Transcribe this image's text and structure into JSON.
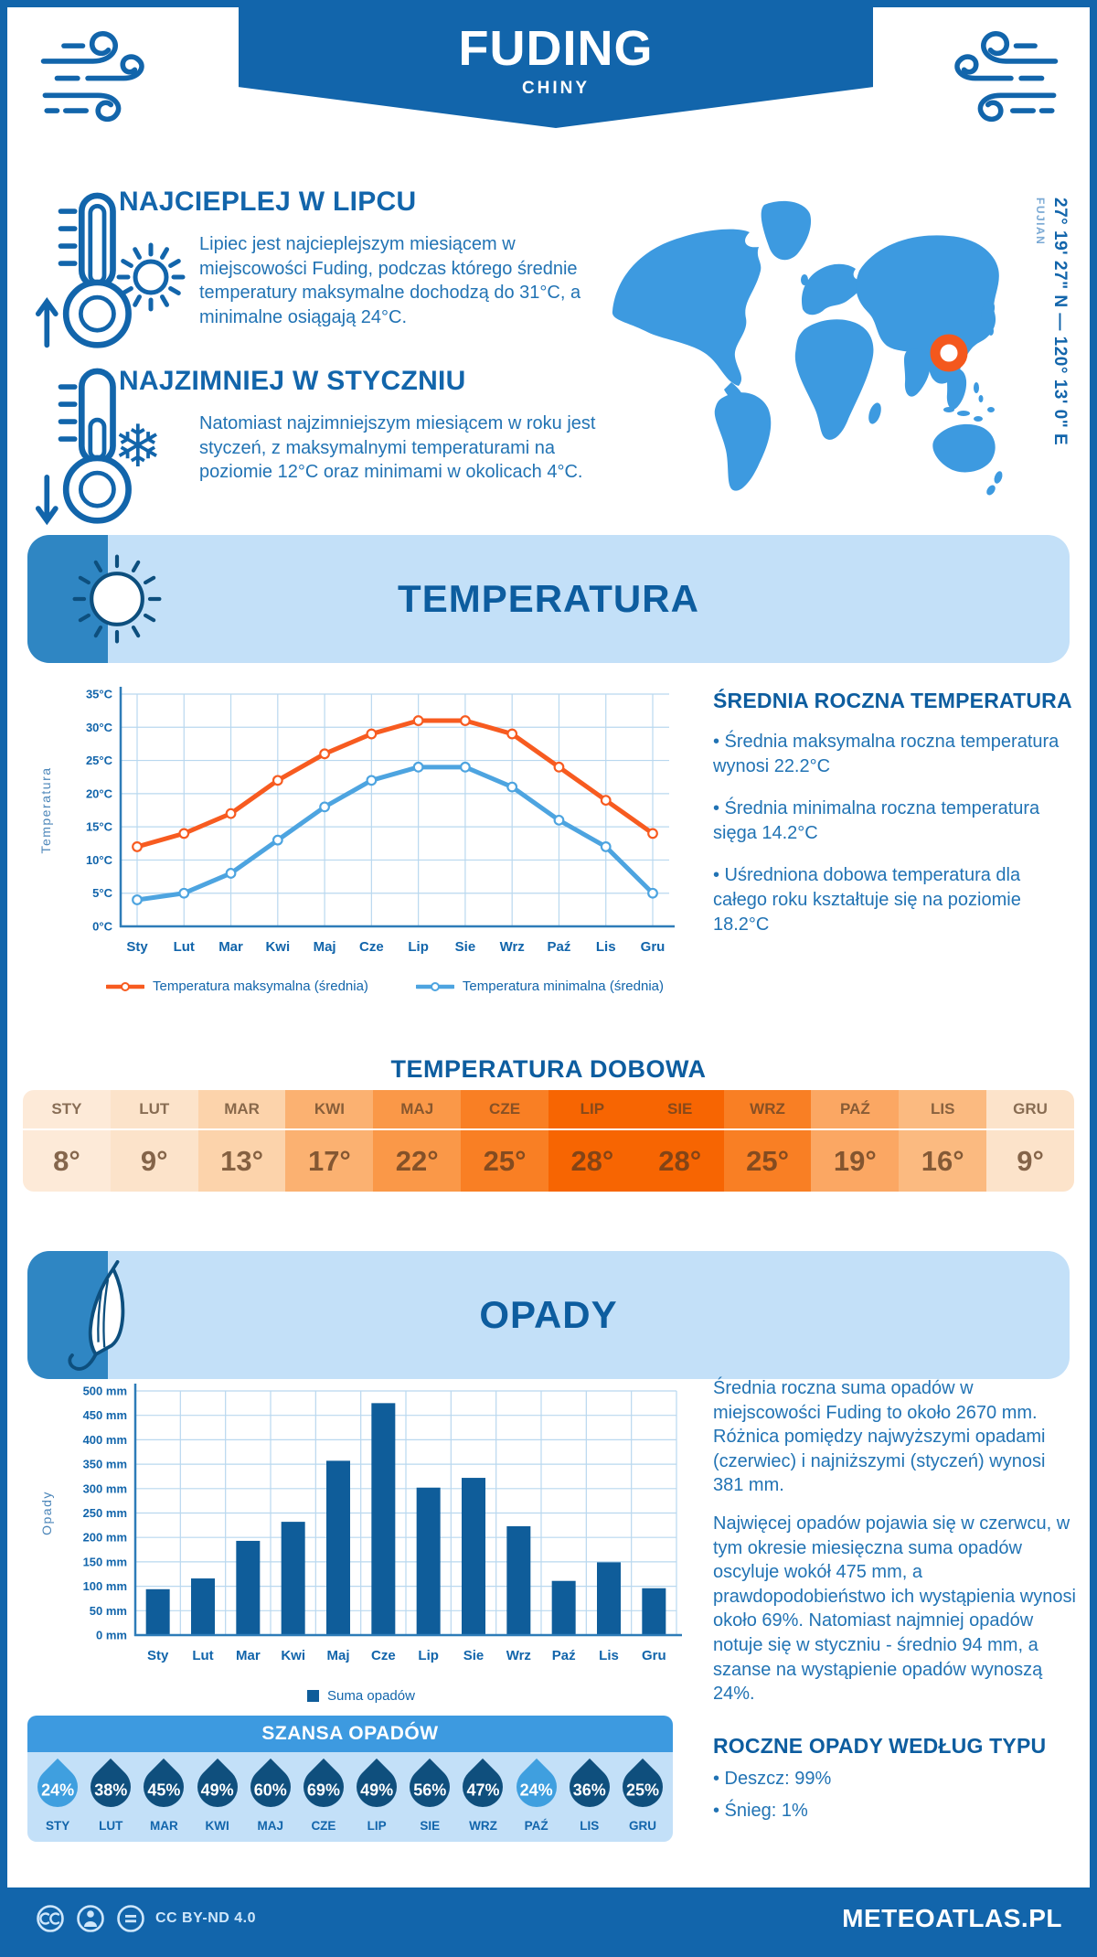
{
  "page": {
    "header": {
      "title": "FUDING",
      "subtitle": "CHINY"
    },
    "highlights": {
      "warmest": {
        "heading": "NAJCIEPLEJ W LIPCU",
        "text": "Lipiec jest najcieplejszym miesiącem w miejscowości Fuding, podczas którego średnie temperatury maksymalne dochodzą do 31°C, a minimalne osiągają 24°C."
      },
      "coldest": {
        "heading": "NAJZIMNIEJ W STYCZNIU",
        "text": "Natomiast najzimniejszym miesiącem w roku jest styczeń, z maksymalnymi temperaturami na poziomie 12°C oraz minimami w okolicach 4°C."
      }
    },
    "map": {
      "coordinates": "27° 19' 27\" N — 120° 13' 0\" E",
      "region": "FUJIAN"
    },
    "temperature_section": {
      "banner": "TEMPERATURA",
      "annual": {
        "heading": "ŚREDNIA ROCZNA TEMPERATURA",
        "bullets": [
          "• Średnia maksymalna roczna temperatura wynosi 22.2°C",
          "• Średnia minimalna roczna temperatura sięga 14.2°C",
          "• Uśredniona dobowa temperatura dla całego roku kształtuje się na poziomie 18.2°C"
        ]
      },
      "daily": {
        "heading": "TEMPERATURA DOBOWA",
        "months": [
          "STY",
          "LUT",
          "MAR",
          "KWI",
          "MAJ",
          "CZE",
          "LIP",
          "SIE",
          "WRZ",
          "PAŹ",
          "LIS",
          "GRU"
        ],
        "values": [
          "8°",
          "9°",
          "13°",
          "17°",
          "22°",
          "25°",
          "28°",
          "28°",
          "25°",
          "19°",
          "16°",
          "9°"
        ],
        "cell_colors": [
          "#fdead8",
          "#fce3ca",
          "#fcd3ab",
          "#fbb171",
          "#fa9848",
          "#f97f24",
          "#f76502",
          "#f76502",
          "#f97f24",
          "#fba763",
          "#fbba80",
          "#fce3ca"
        ]
      }
    },
    "precipitation_section": {
      "banner": "OPADY",
      "summary_paragraphs": [
        "Średnia roczna suma opadów w miejscowości Fuding to około 2670 mm. Różnica pomiędzy najwyższymi opadami (czerwiec) i najniższymi (styczeń) wynosi 381 mm.",
        "Najwięcej opadów pojawia się w czerwcu, w tym okresie miesięczna suma opadów oscyluje wokół 475 mm, a prawdopodobieństwo ich wystąpienia wynosi około 69%. Natomiast najmniej opadów notuje się w styczniu - średnio 94 mm, a szanse na wystąpienie opadów wynoszą 24%."
      ],
      "by_type": {
        "heading": "ROCZNE OPADY WEDŁUG TYPU",
        "bullets": [
          "• Deszcz: 99%",
          "• Śnieg: 1%"
        ]
      },
      "chance": {
        "heading": "SZANSA OPADÓW",
        "months": [
          "STY",
          "LUT",
          "MAR",
          "KWI",
          "MAJ",
          "CZE",
          "LIP",
          "SIE",
          "WRZ",
          "PAŹ",
          "LIS",
          "GRU"
        ],
        "values": [
          "24%",
          "38%",
          "45%",
          "49%",
          "60%",
          "69%",
          "49%",
          "56%",
          "47%",
          "24%",
          "36%",
          "25%"
        ],
        "tones": [
          "light",
          "dark",
          "dark",
          "dark",
          "dark",
          "dark",
          "dark",
          "dark",
          "dark",
          "light",
          "dark",
          "dark"
        ]
      }
    },
    "footer": {
      "license": "CC BY-ND 4.0",
      "brand": "METEOATLAS.PL"
    }
  },
  "chart_data": [
    {
      "type": "line",
      "x": [
        "Sty",
        "Lut",
        "Mar",
        "Kwi",
        "Maj",
        "Cze",
        "Lip",
        "Sie",
        "Wrz",
        "Paź",
        "Lis",
        "Gru"
      ],
      "series": [
        {
          "name": "Temperatura maksymalna (średnia)",
          "color": "#f75b20",
          "values": [
            12,
            14,
            17,
            22,
            26,
            29,
            31,
            31,
            29,
            24,
            19,
            14
          ]
        },
        {
          "name": "Temperatura minimalna (średnia)",
          "color": "#4da4e0",
          "values": [
            4,
            5,
            8,
            13,
            18,
            22,
            24,
            24,
            21,
            16,
            12,
            5
          ]
        }
      ],
      "ylabel": "Temperatura",
      "ylim": [
        0,
        35
      ],
      "ytick_step": 5,
      "ytick_suffix": "°C",
      "grid": true,
      "legend_position": "bottom"
    },
    {
      "type": "bar",
      "categories": [
        "Sty",
        "Lut",
        "Mar",
        "Kwi",
        "Maj",
        "Cze",
        "Lip",
        "Sie",
        "Wrz",
        "Paź",
        "Lis",
        "Gru"
      ],
      "values": [
        94,
        116,
        193,
        232,
        357,
        475,
        302,
        322,
        223,
        111,
        149,
        96
      ],
      "series_name": "Suma opadów",
      "color": "#0f5d9a",
      "ylabel": "Opady",
      "ylim": [
        0,
        500
      ],
      "ytick_step": 50,
      "ytick_suffix": " mm",
      "grid": true,
      "legend_position": "bottom"
    }
  ],
  "colors": {
    "primary": "#1265ab",
    "banner_bg": "#c3e0f8",
    "banner_accent": "#2f86c3",
    "map_land": "#3d9ae0",
    "marker": "#f4581d",
    "chance_header": "#3d9ae0",
    "drop_dark": "#0f4f7d",
    "drop_light": "#3f9fdf",
    "table_hot": "#f76502",
    "table_cool": "#fdead8"
  }
}
